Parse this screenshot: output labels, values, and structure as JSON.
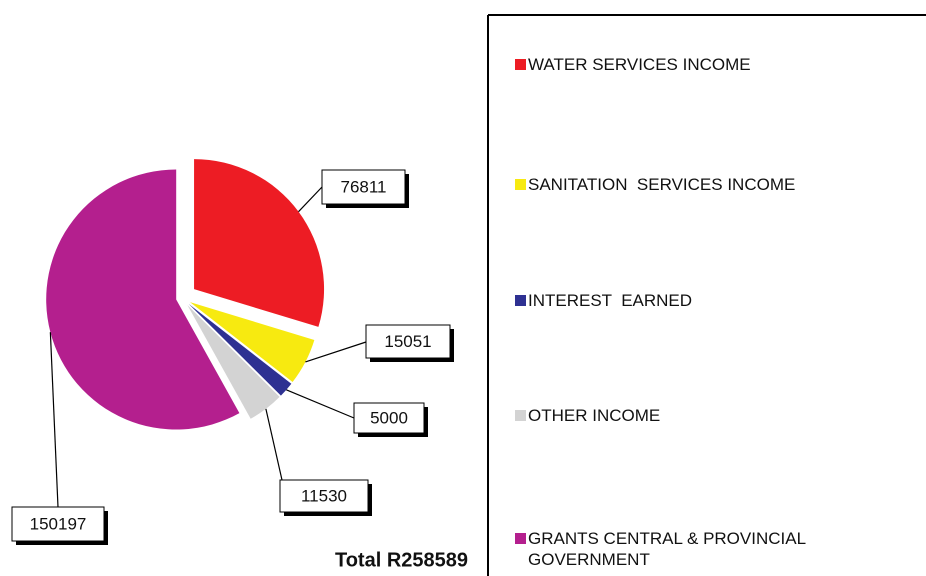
{
  "chart_data": {
    "type": "pie",
    "categories": [
      "WATER SERVICES INCOME",
      "SANITATION  SERVICES INCOME",
      "INTEREST  EARNED",
      "OTHER INCOME",
      "GRANTS CENTRAL & PROVINCIAL GOVERNMENT"
    ],
    "values": [
      76811,
      15051,
      5000,
      11530,
      150197
    ],
    "colors": [
      "#ed1c24",
      "#f7ea10",
      "#2e3192",
      "#d3d3d3",
      "#b41f8e"
    ],
    "annotation": "Total R258589",
    "legend": "right"
  }
}
